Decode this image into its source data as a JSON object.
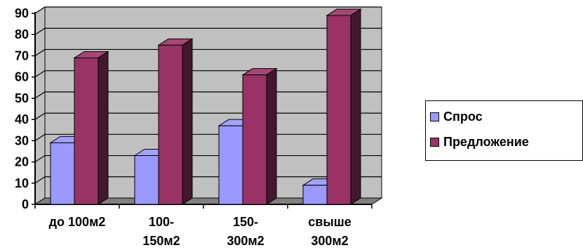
{
  "chart_data": {
    "type": "bar",
    "categories": [
      [
        "до 100м2"
      ],
      [
        "100-",
        "150м2"
      ],
      [
        "150-",
        "300м2"
      ],
      [
        "свыше",
        "300м2"
      ]
    ],
    "series": [
      {
        "name": "Спрос",
        "values": [
          29,
          23,
          37,
          9
        ],
        "color": "#9999ff"
      },
      {
        "name": "Предложение",
        "values": [
          69,
          75,
          61,
          89
        ],
        "color": "#993366"
      }
    ],
    "ylim": [
      0,
      90
    ],
    "yticks": [
      "0",
      "10",
      "20",
      "30",
      "40",
      "50",
      "60",
      "70",
      "80",
      "90"
    ],
    "grid": true,
    "legend_position": "right",
    "wall_color": "#c0c0c0",
    "floor_color": "#808080"
  }
}
